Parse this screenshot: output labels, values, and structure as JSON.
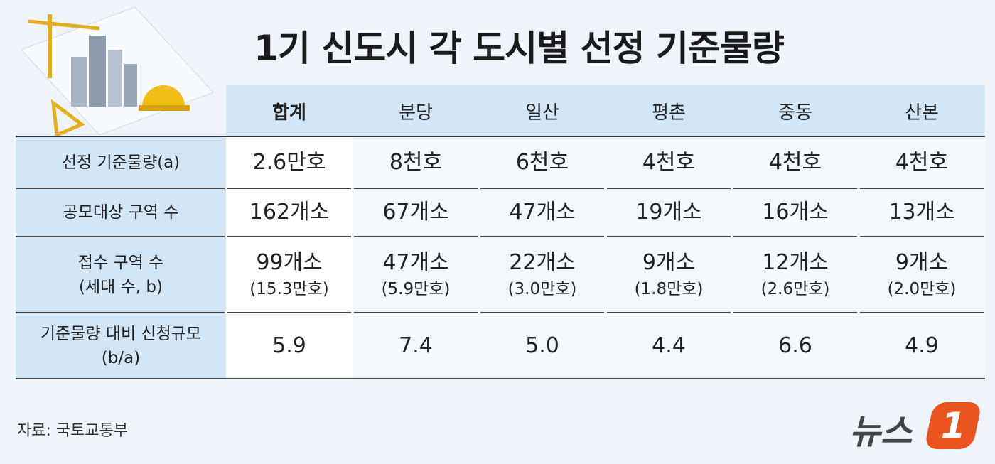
{
  "title": "1기 신도시 각 도시별 선정 기준물량",
  "table": {
    "columns": [
      "합계",
      "분당",
      "일산",
      "평촌",
      "중동",
      "산본"
    ],
    "rows": [
      {
        "label": [
          "선정 기준물량(a)"
        ],
        "cells": [
          [
            "2.6만호"
          ],
          [
            "8천호"
          ],
          [
            "6천호"
          ],
          [
            "4천호"
          ],
          [
            "4천호"
          ],
          [
            "4천호"
          ]
        ]
      },
      {
        "label": [
          "공모대상 구역 수"
        ],
        "cells": [
          [
            "162개소"
          ],
          [
            "67개소"
          ],
          [
            "47개소"
          ],
          [
            "19개소"
          ],
          [
            "16개소"
          ],
          [
            "13개소"
          ]
        ]
      },
      {
        "label": [
          "접수 구역 수",
          "(세대 수, b)"
        ],
        "cells": [
          [
            "99개소",
            "(15.3만호)"
          ],
          [
            "47개소",
            "(5.9만호)"
          ],
          [
            "22개소",
            "(3.0만호)"
          ],
          [
            "9개소",
            "(1.8만호)"
          ],
          [
            "12개소",
            "(2.6만호)"
          ],
          [
            "9개소",
            "(2.0만호)"
          ]
        ]
      },
      {
        "label": [
          "기준물량 대비 신청규모",
          "(b/a)"
        ],
        "cells": [
          [
            "5.9"
          ],
          [
            "7.4"
          ],
          [
            "5.0"
          ],
          [
            "4.4"
          ],
          [
            "6.6"
          ],
          [
            "4.9"
          ]
        ]
      }
    ]
  },
  "source": "자료: 국토교통부",
  "logo": {
    "text": "뉴스",
    "number": "1"
  }
}
